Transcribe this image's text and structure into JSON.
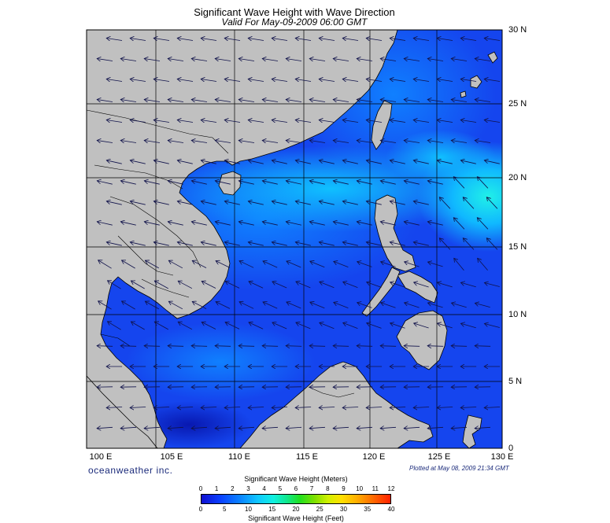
{
  "header": {
    "title": "Significant Wave Height with Wave Direction",
    "subtitle": "Valid For May-09-2009 06:00 GMT"
  },
  "map": {
    "lon_labels": [
      "100 E",
      "105 E",
      "110 E",
      "115 E",
      "120 E",
      "125 E",
      "130 E"
    ],
    "lat_labels": [
      "30 N",
      "25 N",
      "20 N",
      "15 N",
      "10 N",
      "5 N",
      "0"
    ],
    "land_color": "#c0c0c0",
    "sea_color": "#1040f0"
  },
  "footer": {
    "brand": "oceanweather inc.",
    "plotted": "Plotted at May 08, 2009 21:34 GMT"
  },
  "colorbar": {
    "title_meters": "Significant Wave Height (Meters)",
    "title_feet": "Significant Wave Height (Feet)",
    "meters_ticks": [
      "0",
      "1",
      "2",
      "3",
      "4",
      "5",
      "6",
      "7",
      "8",
      "9",
      "10",
      "11",
      "12"
    ],
    "feet_ticks": [
      "0",
      "5",
      "10",
      "15",
      "20",
      "25",
      "30",
      "35",
      "40"
    ]
  }
}
